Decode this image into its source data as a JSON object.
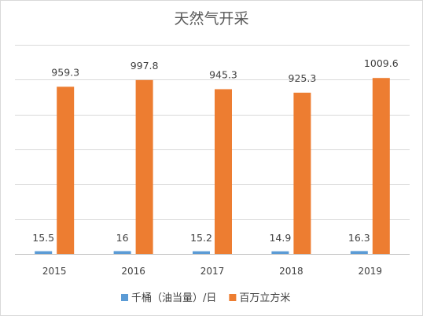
{
  "chart_data": {
    "type": "bar",
    "title": "天然气开采",
    "xlabel": "",
    "ylabel": "",
    "categories": [
      "2015",
      "2016",
      "2017",
      "2018",
      "2019"
    ],
    "series": [
      {
        "name": "千桶（油当量）/日",
        "color": "#5b9bd5",
        "values": [
          15.5,
          16,
          15.2,
          14.9,
          16.3
        ]
      },
      {
        "name": "百万立方米",
        "color": "#ed7d31",
        "values": [
          959.3,
          997.8,
          945.3,
          925.3,
          1009.6
        ]
      }
    ],
    "ylim": [
      0,
      1200
    ],
    "grid": true,
    "legend": "bottom"
  }
}
